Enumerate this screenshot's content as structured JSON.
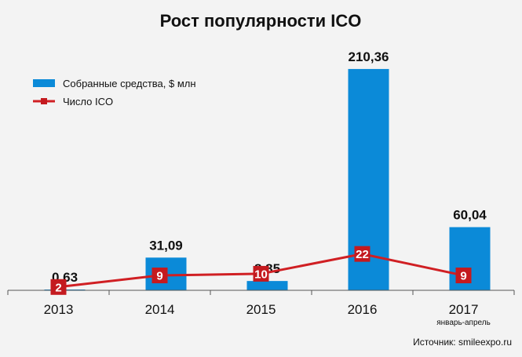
{
  "colors": {
    "background": "#f3f3f3",
    "bar": "#0b8ad8",
    "line": "#d01f23",
    "marker": "#c41a1f",
    "axis": "#555555"
  },
  "chart_data": {
    "type": "bar",
    "title": "Рост популярности ICO",
    "categories": [
      "2013",
      "2014",
      "2015",
      "2016",
      "2017"
    ],
    "category_sublabels": [
      "",
      "",
      "",
      "",
      "январь-апрель"
    ],
    "series": [
      {
        "name": "Собранные средства, $ млн",
        "type": "bar",
        "values": [
          0.63,
          31.09,
          8.85,
          210.36,
          60.04
        ],
        "labels": [
          "0,63",
          "31,09",
          "8,85",
          "210,36",
          "60,04"
        ]
      },
      {
        "name": "Число ICO",
        "type": "line",
        "values": [
          2,
          9,
          10,
          22,
          9
        ],
        "labels": [
          "2",
          "9",
          "10",
          "22",
          "9"
        ]
      }
    ],
    "ylim": [
      0,
      220
    ],
    "line_ylim": [
      0,
      140
    ],
    "grid": false,
    "legend_position": "top-left",
    "xlabel": "",
    "ylabel": ""
  },
  "source": "Источник: smileexpo.ru"
}
